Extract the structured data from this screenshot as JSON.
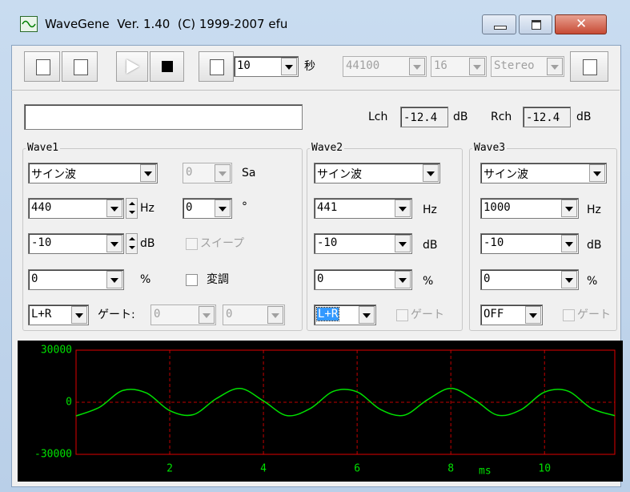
{
  "title_bar": {
    "title": "WaveGene  Ver. 1.40  (C) 1999-2007 efu"
  },
  "toolbar": {
    "duration": "10",
    "duration_unit": "秒",
    "sample_rate": "44100",
    "bits": "16",
    "channels": "Stereo"
  },
  "levels": {
    "lch_label": "Lch",
    "lch_value": "-12.4",
    "lch_unit": "dB",
    "rch_label": "Rch",
    "rch_value": "-12.4",
    "rch_unit": "dB"
  },
  "wave1": {
    "legend": "Wave1",
    "waveform": "サイン波",
    "sample_offset": "0",
    "sample_unit": "Sa",
    "frequency": "440",
    "frequency_unit": "Hz",
    "phase": "0",
    "phase_unit": "°",
    "level": "-10",
    "level_unit": "dB",
    "sweep_label": "スイープ",
    "modulation": "0",
    "modulation_unit": "%",
    "modulation_label": "変調",
    "output": "L+R",
    "gate_label": "ゲート:",
    "gate_on": "0",
    "gate_off": "0"
  },
  "wave2": {
    "legend": "Wave2",
    "waveform": "サイン波",
    "frequency": "441",
    "frequency_unit": "Hz",
    "level": "-10",
    "level_unit": "dB",
    "modulation": "0",
    "modulation_unit": "%",
    "output": "L+R",
    "gate_label": "ゲート"
  },
  "wave3": {
    "legend": "Wave3",
    "waveform": "サイン波",
    "frequency": "1000",
    "frequency_unit": "Hz",
    "level": "-10",
    "level_unit": "dB",
    "modulation": "0",
    "modulation_unit": "%",
    "output": "OFF",
    "gate_label": "ゲート"
  },
  "scope": {
    "type": "line",
    "x": [
      0,
      0.5,
      1,
      1.5,
      2,
      2.5,
      3,
      3.5,
      4,
      4.5,
      5,
      5.5,
      6,
      6.5,
      7,
      7.5,
      8,
      8.5,
      9,
      9.5,
      10,
      10.5,
      11,
      11.5
    ],
    "values": [
      -7870,
      -2880,
      6800,
      5390,
      -4820,
      -7170,
      2180,
      7970,
      770,
      -7690,
      -3590,
      6360,
      5950,
      -4170,
      -7480,
      1420,
      8000,
      1530,
      -7430,
      -4270,
      5860,
      6430,
      -3500,
      -7720
    ],
    "color": "#00e000",
    "xlim": [
      0,
      11.5
    ],
    "ylim": [
      -30000,
      30000
    ],
    "yticks": [
      30000,
      0,
      -30000
    ],
    "xticks": [
      2,
      4,
      6,
      8,
      10
    ],
    "x_label": "ms",
    "grid": true
  }
}
